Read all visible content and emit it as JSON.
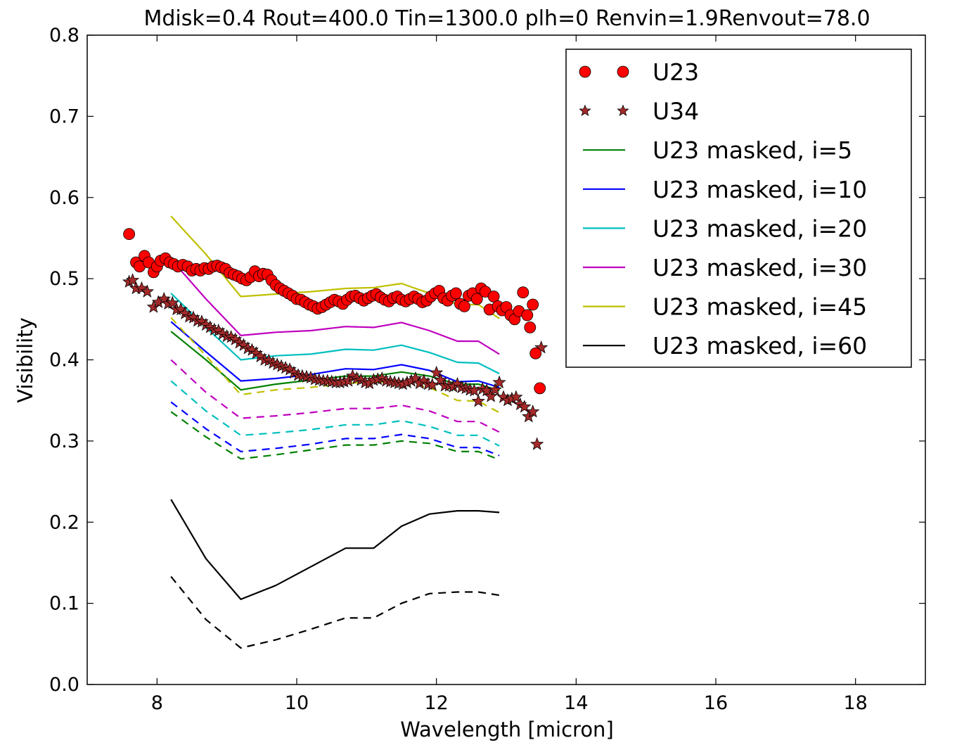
{
  "chart_data": {
    "type": "line",
    "title": "Mdisk=0.4 Rout=400.0 Tin=1300.0 plh=0 Renvin=1.9Renvout=78.0",
    "xlabel": "Wavelength [micron]",
    "ylabel": "Visibility",
    "xlim": [
      7,
      19
    ],
    "ylim": [
      0.0,
      0.8
    ],
    "x_ticks": [
      8,
      10,
      12,
      14,
      16,
      18
    ],
    "y_ticks": [
      0.0,
      0.1,
      0.2,
      0.3,
      0.4,
      0.5,
      0.6,
      0.7,
      0.8
    ],
    "x_tick_labels": [
      "8",
      "10",
      "12",
      "14",
      "16",
      "18"
    ],
    "y_tick_labels": [
      "0.0",
      "0.1",
      "0.2",
      "0.3",
      "0.4",
      "0.5",
      "0.6",
      "0.7",
      "0.8"
    ],
    "legend_position": "top-right",
    "grid": false,
    "scatter_series": [
      {
        "name": "U23",
        "marker": "circle",
        "color": "#ff0000",
        "x": [
          7.6,
          7.7,
          7.75,
          7.82,
          7.88,
          7.95,
          8.0,
          8.05,
          8.12,
          8.18,
          8.24,
          8.3,
          8.37,
          8.44,
          8.5,
          8.56,
          8.62,
          8.68,
          8.74,
          8.8,
          8.86,
          8.92,
          8.98,
          9.04,
          9.1,
          9.16,
          9.22,
          9.28,
          9.34,
          9.4,
          9.46,
          9.52,
          9.58,
          9.64,
          9.7,
          9.76,
          9.82,
          9.88,
          9.94,
          10.0,
          10.06,
          10.12,
          10.18,
          10.24,
          10.3,
          10.36,
          10.42,
          10.48,
          10.54,
          10.6,
          10.66,
          10.72,
          10.78,
          10.84,
          10.9,
          10.96,
          11.02,
          11.08,
          11.14,
          11.2,
          11.26,
          11.32,
          11.38,
          11.44,
          11.5,
          11.56,
          11.62,
          11.68,
          11.74,
          11.8,
          11.86,
          11.92,
          11.98,
          12.04,
          12.1,
          12.16,
          12.22,
          12.28,
          12.34,
          12.4,
          12.46,
          12.52,
          12.58,
          12.64,
          12.7,
          12.76,
          12.82,
          12.88,
          12.94,
          13.0,
          13.06,
          13.12,
          13.18,
          13.24,
          13.3,
          13.34,
          13.38,
          13.42,
          13.48
        ],
        "y": [
          0.555,
          0.52,
          0.515,
          0.528,
          0.52,
          0.508,
          0.515,
          0.522,
          0.525,
          0.52,
          0.518,
          0.515,
          0.517,
          0.515,
          0.51,
          0.512,
          0.51,
          0.513,
          0.512,
          0.515,
          0.516,
          0.514,
          0.512,
          0.507,
          0.505,
          0.503,
          0.5,
          0.498,
          0.502,
          0.509,
          0.503,
          0.506,
          0.505,
          0.498,
          0.492,
          0.488,
          0.485,
          0.482,
          0.479,
          0.475,
          0.474,
          0.471,
          0.468,
          0.466,
          0.463,
          0.465,
          0.468,
          0.471,
          0.474,
          0.472,
          0.469,
          0.474,
          0.478,
          0.479,
          0.476,
          0.473,
          0.476,
          0.479,
          0.481,
          0.477,
          0.474,
          0.472,
          0.476,
          0.478,
          0.474,
          0.472,
          0.475,
          0.478,
          0.475,
          0.471,
          0.473,
          0.478,
          0.482,
          0.485,
          0.476,
          0.473,
          0.479,
          0.482,
          0.469,
          0.466,
          0.479,
          0.482,
          0.475,
          0.488,
          0.484,
          0.462,
          0.478,
          0.466,
          0.461,
          0.465,
          0.455,
          0.45,
          0.46,
          0.483,
          0.455,
          0.44,
          0.468,
          0.408,
          0.365
        ]
      },
      {
        "name": "U34",
        "marker": "star",
        "color": "#a52a2a",
        "x": [
          7.6,
          7.65,
          7.7,
          7.78,
          7.86,
          7.95,
          8.02,
          8.1,
          8.16,
          8.22,
          8.28,
          8.34,
          8.4,
          8.46,
          8.52,
          8.58,
          8.64,
          8.7,
          8.76,
          8.82,
          8.88,
          8.94,
          9.0,
          9.06,
          9.12,
          9.18,
          9.24,
          9.3,
          9.36,
          9.42,
          9.48,
          9.54,
          9.6,
          9.66,
          9.72,
          9.78,
          9.84,
          9.9,
          9.96,
          10.02,
          10.08,
          10.14,
          10.2,
          10.26,
          10.32,
          10.38,
          10.44,
          10.5,
          10.56,
          10.62,
          10.68,
          10.74,
          10.8,
          10.86,
          10.92,
          10.98,
          11.04,
          11.1,
          11.16,
          11.22,
          11.28,
          11.34,
          11.4,
          11.46,
          11.52,
          11.58,
          11.64,
          11.7,
          11.76,
          11.82,
          11.88,
          11.94,
          12.0,
          12.06,
          12.12,
          12.18,
          12.24,
          12.3,
          12.36,
          12.42,
          12.48,
          12.54,
          12.6,
          12.66,
          12.72,
          12.78,
          12.84,
          12.9,
          12.96,
          13.02,
          13.08,
          13.14,
          13.2,
          13.26,
          13.32,
          13.38,
          13.44,
          13.5
        ],
        "y": [
          0.496,
          0.498,
          0.488,
          0.488,
          0.484,
          0.465,
          0.471,
          0.475,
          0.469,
          0.47,
          0.462,
          0.462,
          0.457,
          0.453,
          0.452,
          0.448,
          0.447,
          0.443,
          0.44,
          0.437,
          0.436,
          0.432,
          0.429,
          0.428,
          0.425,
          0.421,
          0.418,
          0.414,
          0.412,
          0.408,
          0.404,
          0.4,
          0.399,
          0.396,
          0.394,
          0.392,
          0.39,
          0.388,
          0.384,
          0.381,
          0.38,
          0.379,
          0.378,
          0.376,
          0.375,
          0.374,
          0.374,
          0.373,
          0.372,
          0.372,
          0.373,
          0.374,
          0.38,
          0.377,
          0.375,
          0.372,
          0.371,
          0.375,
          0.376,
          0.377,
          0.374,
          0.373,
          0.372,
          0.371,
          0.37,
          0.372,
          0.374,
          0.377,
          0.371,
          0.374,
          0.37,
          0.369,
          0.384,
          0.375,
          0.368,
          0.368,
          0.367,
          0.37,
          0.366,
          0.365,
          0.363,
          0.362,
          0.349,
          0.364,
          0.362,
          0.355,
          0.363,
          0.372,
          0.354,
          0.35,
          0.352,
          0.354,
          0.345,
          0.342,
          0.33,
          0.336,
          0.296,
          0.415
        ]
      }
    ],
    "line_x": [
      8.2,
      8.7,
      9.2,
      9.7,
      10.2,
      10.7,
      11.1,
      11.5,
      11.9,
      12.3,
      12.6,
      12.9
    ],
    "line_series": [
      {
        "name": "U23 masked, i=5",
        "color": "#008000",
        "style": "solid",
        "values": [
          0.435,
          0.4,
          0.363,
          0.37,
          0.375,
          0.38,
          0.38,
          0.385,
          0.38,
          0.37,
          0.37,
          0.362
        ]
      },
      {
        "name": "U23 masked, i=10",
        "color": "#0000ff",
        "style": "solid",
        "values": [
          0.447,
          0.41,
          0.374,
          0.377,
          0.382,
          0.389,
          0.388,
          0.394,
          0.387,
          0.373,
          0.374,
          0.366
        ]
      },
      {
        "name": "U23 masked, i=20",
        "color": "#00bfbf",
        "style": "solid",
        "values": [
          0.482,
          0.44,
          0.4,
          0.405,
          0.407,
          0.413,
          0.412,
          0.418,
          0.409,
          0.397,
          0.396,
          0.383
        ]
      },
      {
        "name": "U23 masked, i=30",
        "color": "#bf00bf",
        "style": "solid",
        "values": [
          0.524,
          0.475,
          0.43,
          0.434,
          0.436,
          0.441,
          0.44,
          0.446,
          0.436,
          0.423,
          0.423,
          0.407
        ]
      },
      {
        "name": "U23 masked, i=45",
        "color": "#bfbf00",
        "style": "solid",
        "values": [
          0.577,
          0.53,
          0.478,
          0.481,
          0.484,
          0.488,
          0.489,
          0.494,
          0.482,
          0.468,
          0.468,
          0.451
        ]
      },
      {
        "name": "U23 masked, i=60",
        "color": "#000000",
        "style": "solid",
        "values": [
          0.228,
          0.155,
          0.105,
          0.122,
          0.145,
          0.168,
          0.168,
          0.195,
          0.21,
          0.214,
          0.214,
          0.212
        ]
      },
      {
        "color": "#008000",
        "style": "dashed",
        "values": [
          0.336,
          0.305,
          0.278,
          0.283,
          0.289,
          0.295,
          0.295,
          0.3,
          0.297,
          0.287,
          0.287,
          0.277
        ]
      },
      {
        "color": "#0000ff",
        "style": "dashed",
        "values": [
          0.348,
          0.315,
          0.287,
          0.291,
          0.296,
          0.303,
          0.303,
          0.308,
          0.303,
          0.292,
          0.292,
          0.282
        ]
      },
      {
        "color": "#00bfbf",
        "style": "dashed",
        "values": [
          0.374,
          0.337,
          0.307,
          0.31,
          0.314,
          0.32,
          0.32,
          0.325,
          0.318,
          0.307,
          0.307,
          0.294
        ]
      },
      {
        "color": "#bf00bf",
        "style": "dashed",
        "values": [
          0.4,
          0.36,
          0.328,
          0.331,
          0.335,
          0.34,
          0.34,
          0.344,
          0.337,
          0.324,
          0.324,
          0.311
        ]
      },
      {
        "color": "#bfbf00",
        "style": "dashed",
        "values": [
          0.452,
          0.405,
          0.357,
          0.363,
          0.366,
          0.371,
          0.373,
          0.372,
          0.366,
          0.35,
          0.349,
          0.335
        ]
      },
      {
        "color": "#000000",
        "style": "dashed",
        "values": [
          0.133,
          0.08,
          0.045,
          0.055,
          0.068,
          0.082,
          0.082,
          0.1,
          0.112,
          0.114,
          0.114,
          0.11
        ]
      }
    ],
    "legend": [
      {
        "label": "U23",
        "kind": "circle",
        "color": "#ff0000"
      },
      {
        "label": "U34",
        "kind": "star",
        "color": "#a52a2a"
      },
      {
        "label": "U23 masked, i=5",
        "kind": "line",
        "color": "#008000"
      },
      {
        "label": "U23 masked, i=10",
        "kind": "line",
        "color": "#0000ff"
      },
      {
        "label": "U23 masked, i=20",
        "kind": "line",
        "color": "#00bfbf"
      },
      {
        "label": "U23 masked, i=30",
        "kind": "line",
        "color": "#bf00bf"
      },
      {
        "label": "U23 masked, i=45",
        "kind": "line",
        "color": "#bfbf00"
      },
      {
        "label": "U23 masked, i=60",
        "kind": "line",
        "color": "#000000"
      }
    ]
  }
}
